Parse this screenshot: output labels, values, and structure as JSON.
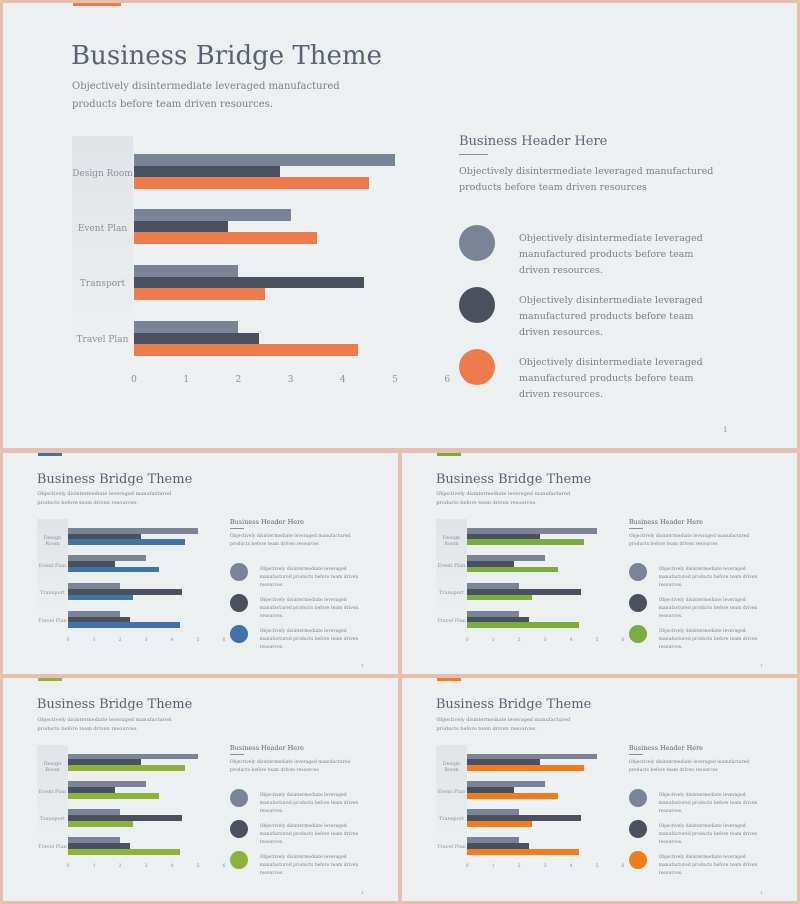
{
  "colors": {
    "light_gray": "#7b8497",
    "dark_gray": "#4a505d",
    "accent_orange": "#ee7b4c",
    "accent_blue": "#4173a8",
    "accent_green_1": "#7aac3f",
    "accent_green_2": "#8db33a",
    "accent_orange_2": "#f07d1c"
  },
  "slides": [
    {
      "title": "Business Bridge Theme",
      "subtitle": "Objectively disintermediate leveraged manufactured products before team driven resources.",
      "accent": "#ee7b4c",
      "right_header": "Business Header Here",
      "right_text": "Objectively disintermediate leveraged manufactured products before team driven resources",
      "bullets": [
        {
          "text": "Objectively disintermediate leveraged manufactured products before team  driven resources.",
          "color": "#7b8497"
        },
        {
          "text": "Objectively disintermediate leveraged manufactured products before team  driven resources.",
          "color": "#4a505d"
        },
        {
          "text": "Objectively disintermediate leveraged manufactured products before team  driven resources.",
          "color": "#ee7b4c"
        }
      ],
      "page": "1"
    },
    {
      "title": "Business Bridge Theme",
      "subtitle": "Objectively disintermediate leveraged manufactured products before team driven resources.",
      "accent": "#4173a8",
      "right_header": "Business Header Here",
      "right_text": "Objectively disintermediate leveraged manufactured products before team driven resources",
      "bullets": [
        {
          "text": "Objectively disintermediate leveraged manufactured products before team  driven resources.",
          "color": "#7b8497"
        },
        {
          "text": "Objectively disintermediate leveraged manufactured products before team  driven resources.",
          "color": "#4a505d"
        },
        {
          "text": "Objectively disintermediate leveraged manufactured products before team  driven resources.",
          "color": "#4173a8"
        }
      ],
      "page": "1"
    },
    {
      "title": "Business Bridge Theme",
      "subtitle": "Objectively disintermediate leveraged manufactured products before team driven resources.",
      "accent": "#7aac3f",
      "right_header": "Business Header Here",
      "right_text": "Objectively disintermediate leveraged manufactured products before team driven resources",
      "bullets": [
        {
          "text": "Objectively disintermediate leveraged manufactured products before team  driven resources.",
          "color": "#7b8497"
        },
        {
          "text": "Objectively disintermediate leveraged manufactured products before team  driven resources.",
          "color": "#4a505d"
        },
        {
          "text": "Objectively disintermediate leveraged manufactured products before team  driven resources.",
          "color": "#7aac3f"
        }
      ],
      "page": "1"
    },
    {
      "title": "Business Bridge Theme",
      "subtitle": "Objectively disintermediate leveraged manufactured products before team driven resources.",
      "accent": "#8db33a",
      "right_header": "Business Header Here",
      "right_text": "Objectively disintermediate leveraged manufactured products before team driven resources",
      "bullets": [
        {
          "text": "Objectively disintermediate leveraged manufactured products before team  driven resources.",
          "color": "#7b8497"
        },
        {
          "text": "Objectively disintermediate leveraged manufactured products before team  driven resources.",
          "color": "#4a505d"
        },
        {
          "text": "Objectively disintermediate leveraged manufactured products before team  driven resources.",
          "color": "#8db33a"
        }
      ],
      "page": "1"
    },
    {
      "title": "Business Bridge Theme",
      "subtitle": "Objectively disintermediate leveraged manufactured products before team driven resources.",
      "accent": "#f07d1c",
      "right_header": "Business Header Here",
      "right_text": "Objectively disintermediate leveraged manufactured products before team driven resources",
      "bullets": [
        {
          "text": "Objectively disintermediate leveraged manufactured products before team  driven resources.",
          "color": "#7b8497"
        },
        {
          "text": "Objectively disintermediate leveraged manufactured products before team  driven resources.",
          "color": "#4a505d"
        },
        {
          "text": "Objectively disintermediate leveraged manufactured products before team  driven resources.",
          "color": "#f07d1c"
        }
      ],
      "page": "1"
    }
  ],
  "chart_data": {
    "type": "bar",
    "orientation": "horizontal",
    "categories": [
      "Design Room",
      "Event Plan",
      "Transport",
      "Travel Plan"
    ],
    "series": [
      {
        "values": [
          5,
          3,
          2,
          2
        ],
        "color": "#7b8497"
      },
      {
        "values": [
          2.8,
          1.8,
          4.4,
          2.4
        ],
        "color": "#4a505d"
      },
      {
        "values": [
          4.5,
          3.5,
          2.5,
          4.3
        ],
        "color": "accent"
      }
    ],
    "xticks": [
      "0",
      "1",
      "2",
      "3",
      "4",
      "5",
      "6"
    ],
    "xlim": [
      0,
      6
    ],
    "grid": false
  }
}
